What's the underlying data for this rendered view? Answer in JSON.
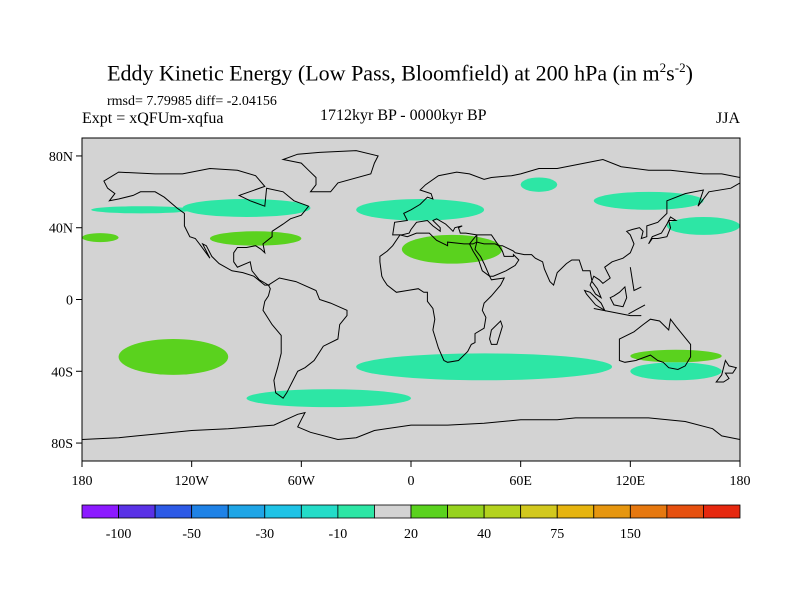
{
  "title": {
    "main": "Eddy Kinetic Energy (Low Pass, Bloomfield) at 200 hPa (in m",
    "sup1": "2",
    "mid": "s",
    "sup2": "-2",
    "end": ")"
  },
  "stats": "rmsd= 7.79985 diff= -2.04156",
  "experiment": "Expt = xQFUm-xqfua",
  "period": "1712kyr BP - 0000kyr BP",
  "season": "JJA",
  "colors": {
    "land_background": "#d3d3d3",
    "coast": "#000000"
  },
  "chart_data": {
    "type": "heatmap",
    "variable": "Eddy kinetic energy difference (m2 s-2)",
    "x_range": [
      -180,
      180
    ],
    "y_range": [
      -90,
      90
    ],
    "x_ticks": [
      {
        "value": -180,
        "label": "180"
      },
      {
        "value": -120,
        "label": "120W"
      },
      {
        "value": -60,
        "label": "60W"
      },
      {
        "value": 0,
        "label": "0"
      },
      {
        "value": 60,
        "label": "60E"
      },
      {
        "value": 120,
        "label": "120E"
      },
      {
        "value": 180,
        "label": "180"
      }
    ],
    "y_ticks": [
      {
        "value": 80,
        "label": "80N"
      },
      {
        "value": 40,
        "label": "40N"
      },
      {
        "value": 0,
        "label": "0"
      },
      {
        "value": -40,
        "label": "40S"
      },
      {
        "value": -80,
        "label": "80S"
      }
    ],
    "colorbar": {
      "colors": [
        "#8c1aff",
        "#5a32e6",
        "#2d5ae6",
        "#1f82e6",
        "#1fa5e6",
        "#1fc3e6",
        "#24dcc8",
        "#2de6a5",
        "#d3d3d3",
        "#5ad21e",
        "#96d21e",
        "#b4d21e",
        "#d2c81e",
        "#e6b40f",
        "#e6960f",
        "#e6780f",
        "#e6500f",
        "#e6280f"
      ],
      "labels": [
        {
          "after": 1,
          "text": "-100"
        },
        {
          "after": 3,
          "text": "-50"
        },
        {
          "after": 5,
          "text": "-30"
        },
        {
          "after": 7,
          "text": "-10"
        },
        {
          "after": 9,
          "text": "20"
        },
        {
          "after": 11,
          "text": "40"
        },
        {
          "after": 13,
          "text": "75"
        },
        {
          "after": 15,
          "text": "150"
        }
      ]
    },
    "anomaly_regions": [
      {
        "level": "-10",
        "color": "#2de6a5",
        "lon": [
          -175,
          -120
        ],
        "lat": [
          48,
          52
        ]
      },
      {
        "level": "-10",
        "color": "#2de6a5",
        "lon": [
          -125,
          -55
        ],
        "lat": [
          46,
          56
        ]
      },
      {
        "level": "-10",
        "color": "#2de6a5",
        "lon": [
          -30,
          40
        ],
        "lat": [
          44,
          56
        ]
      },
      {
        "level": "-10",
        "color": "#2de6a5",
        "lon": [
          60,
          80
        ],
        "lat": [
          60,
          68
        ]
      },
      {
        "level": "-10",
        "color": "#2de6a5",
        "lon": [
          100,
          160
        ],
        "lat": [
          50,
          60
        ]
      },
      {
        "level": "-10",
        "color": "#2de6a5",
        "lon": [
          140,
          180
        ],
        "lat": [
          36,
          46
        ]
      },
      {
        "level": "-10",
        "color": "#2de6a5",
        "lon": [
          120,
          170
        ],
        "lat": [
          -45,
          -35
        ]
      },
      {
        "level": "-10",
        "color": "#2de6a5",
        "lon": [
          -90,
          0
        ],
        "lat": [
          -60,
          -50
        ]
      },
      {
        "level": "-10",
        "color": "#2de6a5",
        "lon": [
          -30,
          110
        ],
        "lat": [
          -45,
          -30
        ]
      },
      {
        "level": "20",
        "color": "#5ad21e",
        "lon": [
          -180,
          -160
        ],
        "lat": [
          32,
          37
        ]
      },
      {
        "level": "20",
        "color": "#5ad21e",
        "lon": [
          -110,
          -60
        ],
        "lat": [
          30,
          38
        ]
      },
      {
        "level": "20",
        "color": "#5ad21e",
        "lon": [
          -5,
          50
        ],
        "lat": [
          20,
          36
        ]
      },
      {
        "level": "20",
        "color": "#5ad21e",
        "lon": [
          -160,
          -100
        ],
        "lat": [
          -42,
          -22
        ]
      },
      {
        "level": "20",
        "color": "#5ad21e",
        "lon": [
          120,
          170
        ],
        "lat": [
          -35,
          -28
        ]
      }
    ],
    "land_regions": [
      "North America",
      "Greenland",
      "South America",
      "Eurasia",
      "Africa",
      "Arabia",
      "India",
      "Southeast Asia",
      "Borneo",
      "Sumatra",
      "Australia",
      "New Zealand",
      "Madagascar",
      "Japan",
      "Antarctica"
    ]
  }
}
